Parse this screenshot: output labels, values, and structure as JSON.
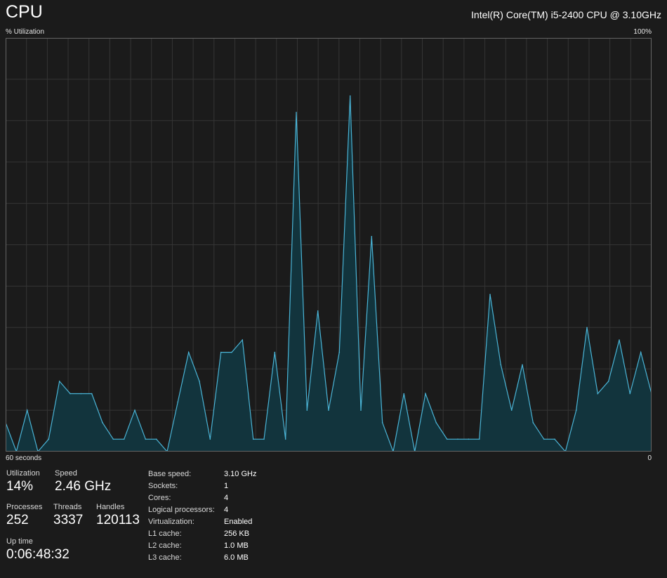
{
  "header": {
    "title": "CPU",
    "cpu_model": "Intel(R) Core(TM) i5-2400 CPU @ 3.10GHz"
  },
  "graph": {
    "y_label": "% Utilization",
    "y_max_label": "100%",
    "x_left_label": "60 seconds",
    "x_right_label": "0",
    "line_color": "#4ab4d6",
    "fill_color": "#12343d",
    "grid_color": "#353535",
    "border_color": "#646464"
  },
  "chart_data": {
    "type": "area",
    "ylabel": "% Utilization",
    "xlabel": "60 seconds",
    "ylim": [
      0,
      100
    ],
    "x": [
      60,
      59,
      58,
      57,
      56,
      55,
      54,
      53,
      52,
      51,
      50,
      49,
      48,
      47,
      46,
      45,
      44,
      43,
      42,
      41,
      40,
      39,
      38,
      37,
      36,
      35,
      34,
      33,
      32,
      31,
      30,
      29,
      28,
      27,
      26,
      25,
      24,
      23,
      22,
      21,
      20,
      19,
      18,
      17,
      16,
      15,
      14,
      13,
      12,
      11,
      10,
      9,
      8,
      7,
      6,
      5,
      4,
      3,
      2,
      1,
      0
    ],
    "values": [
      7,
      0,
      10,
      0,
      3,
      17,
      14,
      14,
      14,
      7,
      3,
      3,
      10,
      3,
      3,
      0,
      12,
      24,
      17,
      3,
      24,
      24,
      27,
      3,
      3,
      24,
      3,
      82,
      10,
      34,
      10,
      24,
      86,
      10,
      52,
      7,
      0,
      14,
      0,
      14,
      7,
      3,
      3,
      3,
      3,
      38,
      21,
      10,
      21,
      7,
      3,
      3,
      0,
      10,
      30,
      14,
      17,
      27,
      14,
      24,
      14
    ],
    "grid": true
  },
  "stats": {
    "utilization": {
      "label": "Utilization",
      "value": "14%"
    },
    "speed": {
      "label": "Speed",
      "value": "2.46 GHz"
    },
    "processes": {
      "label": "Processes",
      "value": "252"
    },
    "threads": {
      "label": "Threads",
      "value": "3337"
    },
    "handles": {
      "label": "Handles",
      "value": "120113"
    },
    "uptime": {
      "label": "Up time",
      "value": "0:06:48:32"
    }
  },
  "details": [
    {
      "key": "Base speed:",
      "value": "3.10 GHz"
    },
    {
      "key": "Sockets:",
      "value": "1"
    },
    {
      "key": "Cores:",
      "value": "4"
    },
    {
      "key": "Logical processors:",
      "value": "4"
    },
    {
      "key": "Virtualization:",
      "value": "Enabled"
    },
    {
      "key": "L1 cache:",
      "value": "256 KB"
    },
    {
      "key": "L2 cache:",
      "value": "1.0 MB"
    },
    {
      "key": "L3 cache:",
      "value": "6.0 MB"
    }
  ]
}
